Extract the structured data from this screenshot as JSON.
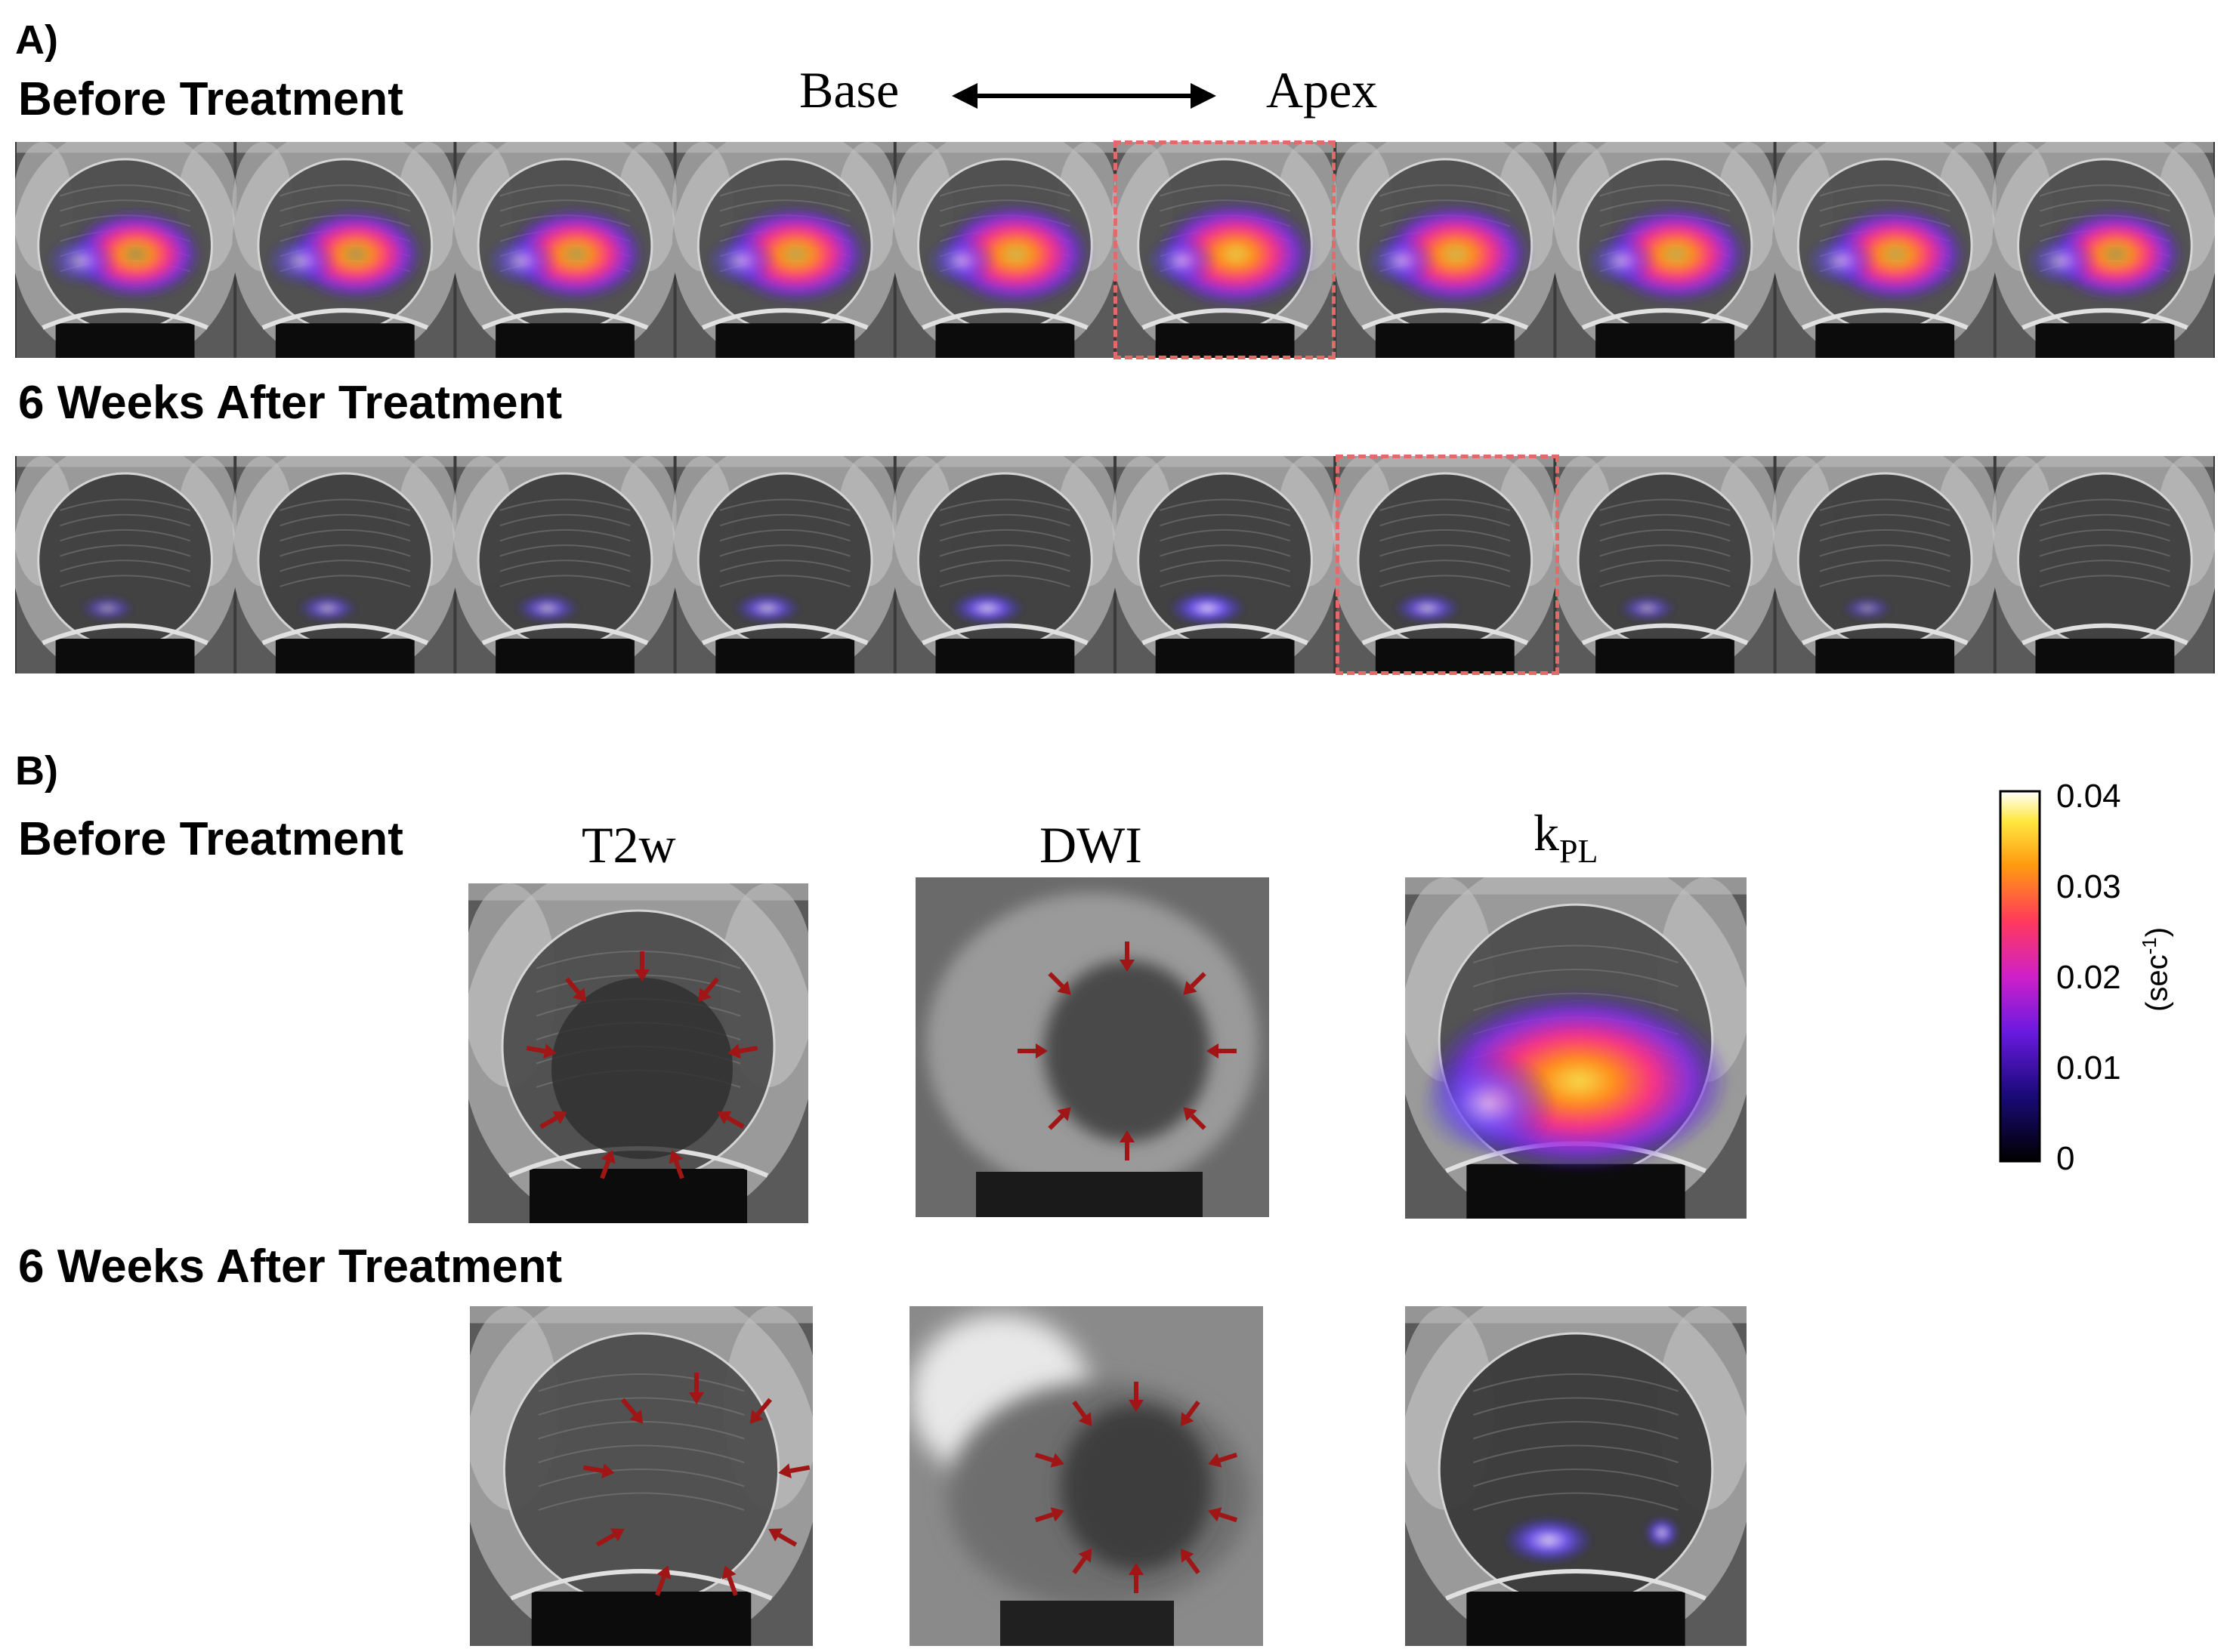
{
  "panel_a": {
    "label": "A)",
    "row1_title": "Before Treatment",
    "row2_title": "6 Weeks After Treatment",
    "axis_left": "Base",
    "axis_right": "Apex",
    "before_slices": [
      {
        "signal": 0.55,
        "hot": 0.35
      },
      {
        "signal": 0.6,
        "hot": 0.4
      },
      {
        "signal": 0.65,
        "hot": 0.45
      },
      {
        "signal": 0.75,
        "hot": 0.55
      },
      {
        "signal": 0.85,
        "hot": 0.7
      },
      {
        "signal": 0.95,
        "hot": 0.85
      },
      {
        "signal": 0.85,
        "hot": 0.7
      },
      {
        "signal": 0.75,
        "hot": 0.6
      },
      {
        "signal": 0.7,
        "hot": 0.55
      },
      {
        "signal": 0.6,
        "hot": 0.4
      }
    ],
    "after_slices": [
      {
        "signal": 0.15
      },
      {
        "signal": 0.25
      },
      {
        "signal": 0.3
      },
      {
        "signal": 0.35
      },
      {
        "signal": 0.45
      },
      {
        "signal": 0.5
      },
      {
        "signal": 0.35
      },
      {
        "signal": 0.2
      },
      {
        "signal": 0.1
      },
      {
        "signal": 0.0
      }
    ],
    "highlight_before_index": 5,
    "highlight_after_index": 6
  },
  "panel_b": {
    "label": "B)",
    "row1_title": "Before Treatment",
    "row2_title": "6 Weeks After Treatment",
    "col_t2w": "T2w",
    "col_dwi": "DWI",
    "col_kpl_main": "k",
    "col_kpl_sub": "PL"
  },
  "colorbar": {
    "ticks": [
      "0.04",
      "0.03",
      "0.02",
      "0.01",
      "0"
    ],
    "unit_main": "(sec",
    "unit_sup": "-1",
    "unit_close": ")",
    "range": [
      0,
      0.04
    ],
    "colormap": "hot-magenta"
  },
  "colors": {
    "arrow": "#a01515",
    "highlight_box": "#e46a6a"
  }
}
